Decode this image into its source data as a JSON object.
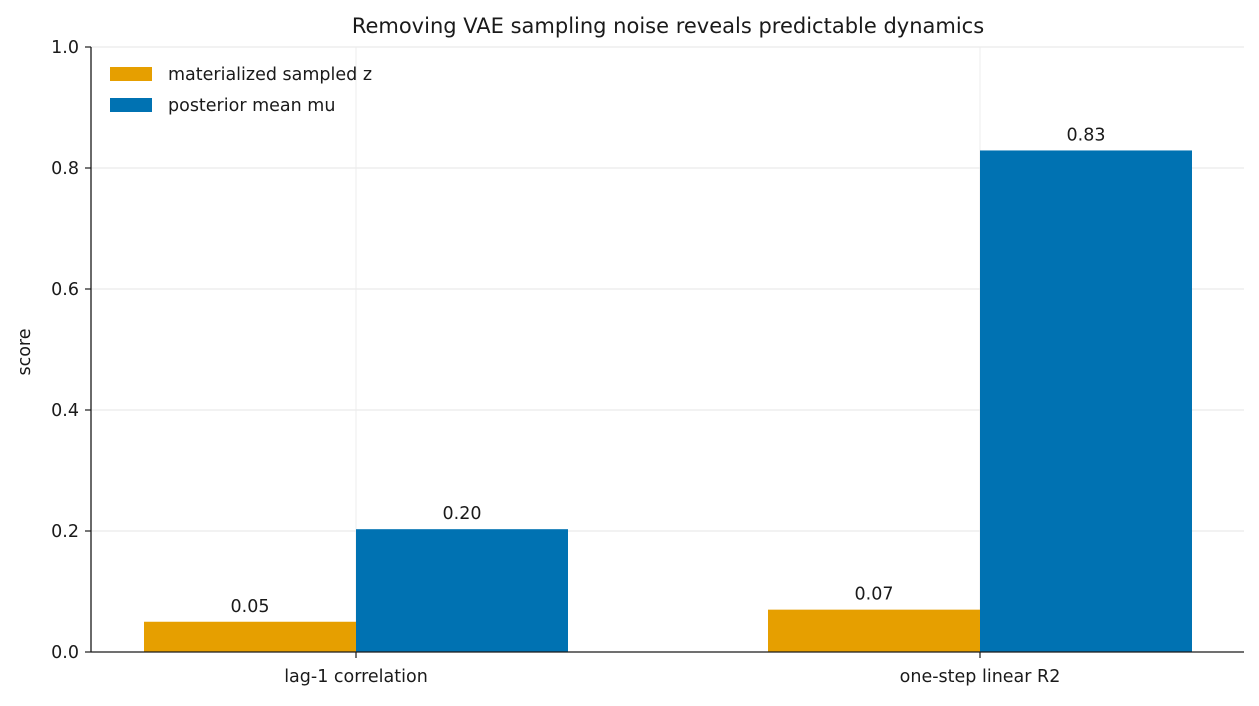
{
  "chart_data": {
    "type": "bar",
    "title": "Removing VAE sampling noise reveals predictable dynamics",
    "xlabel": "",
    "ylabel": "score",
    "ylim": [
      0,
      1.0
    ],
    "yticks": [
      0.0,
      0.2,
      0.4,
      0.6,
      0.8,
      1.0
    ],
    "ytick_labels": [
      "0.0",
      "0.2",
      "0.4",
      "0.6",
      "0.8",
      "1.0"
    ],
    "grid": true,
    "legend_position": "top-left",
    "categories": [
      "lag-1 correlation",
      "one-step linear R2"
    ],
    "series": [
      {
        "name": "materialized sampled z",
        "color": "#E69F00",
        "values": [
          0.05,
          0.07
        ],
        "labels": [
          "0.05",
          "0.07"
        ]
      },
      {
        "name": "posterior mean mu",
        "color": "#0072B2",
        "values": [
          0.203,
          0.829
        ],
        "labels": [
          "0.20",
          "0.83"
        ]
      }
    ]
  }
}
